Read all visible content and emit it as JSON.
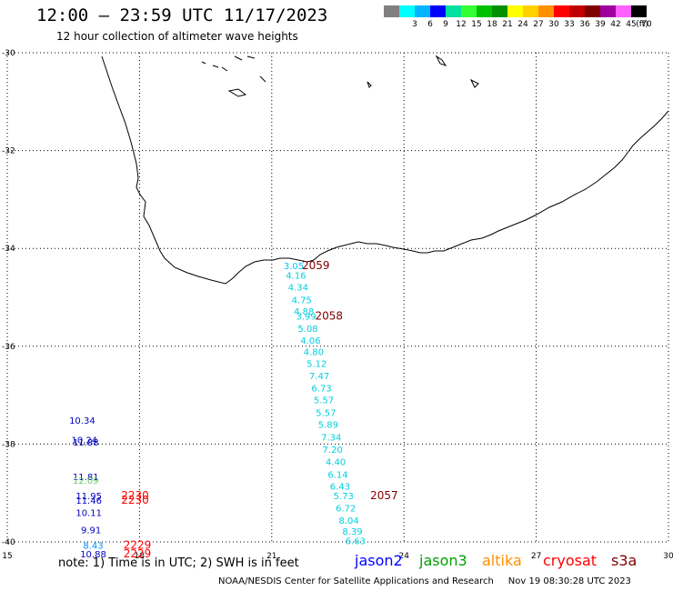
{
  "header": {
    "title": "12:00 – 23:59 UTC 11/17/2023",
    "subtitle": "12 hour collection of altimeter wave heights"
  },
  "color_scale": {
    "unit_label": "(ft)",
    "bins": [
      {
        "label": "",
        "color": "#808080"
      },
      {
        "label": "3",
        "color": "#00ffff"
      },
      {
        "label": "6",
        "color": "#00b4ff"
      },
      {
        "label": "9",
        "color": "#0000ff"
      },
      {
        "label": "12",
        "color": "#00e0a0"
      },
      {
        "label": "15",
        "color": "#33ff33"
      },
      {
        "label": "18",
        "color": "#00c000"
      },
      {
        "label": "21",
        "color": "#009000"
      },
      {
        "label": "24",
        "color": "#ffff00"
      },
      {
        "label": "27",
        "color": "#ffd000"
      },
      {
        "label": "30",
        "color": "#ff9000"
      },
      {
        "label": "33",
        "color": "#ff0000"
      },
      {
        "label": "36",
        "color": "#c00000"
      },
      {
        "label": "39",
        "color": "#800000"
      },
      {
        "label": "42",
        "color": "#a000a0"
      },
      {
        "label": "45",
        "color": "#ff60ff"
      },
      {
        "label": "70",
        "color": "#000000"
      }
    ]
  },
  "axes": {
    "lon_ticks": [
      "15",
      "18",
      "21",
      "24",
      "27",
      "30"
    ],
    "lat_ticks": [
      "-30",
      "-32",
      "-34",
      "-36",
      "-38",
      "-40"
    ]
  },
  "map_data": {
    "lon_range": [
      15,
      30
    ],
    "lat_range": [
      -40,
      -30
    ],
    "swh_points": [
      {
        "lon": 21.5,
        "lat": -34.42,
        "value": "3.05",
        "color": "#00c8ff"
      },
      {
        "lon": 21.55,
        "lat": -34.62,
        "value": "4.16",
        "color": "#00d0e0"
      },
      {
        "lon": 21.6,
        "lat": -34.86,
        "value": "4.34",
        "color": "#00d0e0"
      },
      {
        "lon": 21.68,
        "lat": -35.12,
        "value": "4.75",
        "color": "#00d0e0"
      },
      {
        "lon": 21.73,
        "lat": -35.35,
        "value": "4.88",
        "color": "#00d0e0"
      },
      {
        "lon": 21.78,
        "lat": -35.46,
        "value": "3.99",
        "color": "#00d0e0"
      },
      {
        "lon": 21.82,
        "lat": -35.71,
        "value": "5.08",
        "color": "#00d0e0"
      },
      {
        "lon": 21.88,
        "lat": -35.95,
        "value": "4.06",
        "color": "#00d0e0"
      },
      {
        "lon": 21.95,
        "lat": -36.18,
        "value": "4.80",
        "color": "#00d0e0"
      },
      {
        "lon": 22.02,
        "lat": -36.42,
        "value": "5.12",
        "color": "#00d0e0"
      },
      {
        "lon": 22.08,
        "lat": -36.67,
        "value": "7.47",
        "color": "#00d0e0"
      },
      {
        "lon": 22.13,
        "lat": -36.92,
        "value": "6.73",
        "color": "#00d0e0"
      },
      {
        "lon": 22.18,
        "lat": -37.17,
        "value": "5.57",
        "color": "#00d0e0"
      },
      {
        "lon": 22.23,
        "lat": -37.43,
        "value": "5.57",
        "color": "#00d0e0"
      },
      {
        "lon": 22.28,
        "lat": -37.67,
        "value": "5.89",
        "color": "#00d0e0"
      },
      {
        "lon": 22.35,
        "lat": -37.93,
        "value": "7.34",
        "color": "#00d0e0"
      },
      {
        "lon": 22.38,
        "lat": -38.18,
        "value": "7.20",
        "color": "#00d0e0"
      },
      {
        "lon": 22.45,
        "lat": -38.43,
        "value": "4.40",
        "color": "#00d0e0"
      },
      {
        "lon": 22.5,
        "lat": -38.69,
        "value": "6.14",
        "color": "#00d0e0"
      },
      {
        "lon": 22.55,
        "lat": -38.93,
        "value": "6.43",
        "color": "#00d0e0"
      },
      {
        "lon": 22.63,
        "lat": -39.13,
        "value": "5.73",
        "color": "#00d0e0"
      },
      {
        "lon": 22.68,
        "lat": -39.38,
        "value": "6.72",
        "color": "#00d0e0"
      },
      {
        "lon": 22.75,
        "lat": -39.63,
        "value": "8.04",
        "color": "#00d0e0"
      },
      {
        "lon": 22.83,
        "lat": -39.85,
        "value": "8.39",
        "color": "#00d0e0"
      },
      {
        "lon": 22.9,
        "lat": -40.05,
        "value": "6.63",
        "color": "#00d0e0"
      },
      {
        "lon": 16.7,
        "lat": -37.58,
        "value": "10.34",
        "color": "#0000c0"
      },
      {
        "lon": 16.75,
        "lat": -37.98,
        "value": "10.24",
        "color": "#0000c0"
      },
      {
        "lon": 16.78,
        "lat": -38.03,
        "value": "11.88",
        "color": "#0000c0"
      },
      {
        "lon": 16.78,
        "lat": -38.74,
        "value": "11.81",
        "color": "#0000c0"
      },
      {
        "lon": 16.78,
        "lat": -38.81,
        "value": "12.09",
        "color": "#60d060"
      },
      {
        "lon": 16.85,
        "lat": -39.13,
        "value": "11.95",
        "color": "#0000c0"
      },
      {
        "lon": 16.85,
        "lat": -39.22,
        "value": "11.46",
        "color": "#0000c0"
      },
      {
        "lon": 16.85,
        "lat": -39.47,
        "value": "10.11",
        "color": "#0000c0"
      },
      {
        "lon": 16.9,
        "lat": -39.82,
        "value": "9.91",
        "color": "#0000c0"
      },
      {
        "lon": 16.95,
        "lat": -40.14,
        "value": "8.43",
        "color": "#0090ff"
      },
      {
        "lon": 16.95,
        "lat": -40.32,
        "value": "10.88",
        "color": "#0000c0"
      }
    ],
    "pass_labels": [
      {
        "lon": 22.0,
        "lat": -34.42,
        "text": "2059",
        "color": "#800000"
      },
      {
        "lon": 22.3,
        "lat": -35.46,
        "text": "2058",
        "color": "#800000"
      },
      {
        "lon": 23.55,
        "lat": -39.13,
        "text": "2057",
        "color": "#800000"
      },
      {
        "lon": 17.9,
        "lat": -39.13,
        "text": "2230",
        "color": "#ff0000"
      },
      {
        "lon": 17.9,
        "lat": -39.22,
        "text": "2230",
        "color": "#ff0000"
      },
      {
        "lon": 17.95,
        "lat": -40.14,
        "text": "2229",
        "color": "#ff0000"
      },
      {
        "lon": 17.95,
        "lat": -40.32,
        "text": "2229",
        "color": "#ff0000"
      }
    ]
  },
  "footer": {
    "note": "note:  1) Time is in UTC;  2) SWH is in feet",
    "satellites": [
      {
        "name": "jason2",
        "color": "#0000ff"
      },
      {
        "name": "jason3",
        "color": "#00a000"
      },
      {
        "name": "altika",
        "color": "#ff9000"
      },
      {
        "name": "cryosat",
        "color": "#ff0000"
      },
      {
        "name": "s3a",
        "color": "#800000"
      }
    ],
    "credit": "NOAA/NESDIS Center for Satellite Applications and Research",
    "timestamp": "Nov 19 08:30:28 UTC 2023"
  }
}
